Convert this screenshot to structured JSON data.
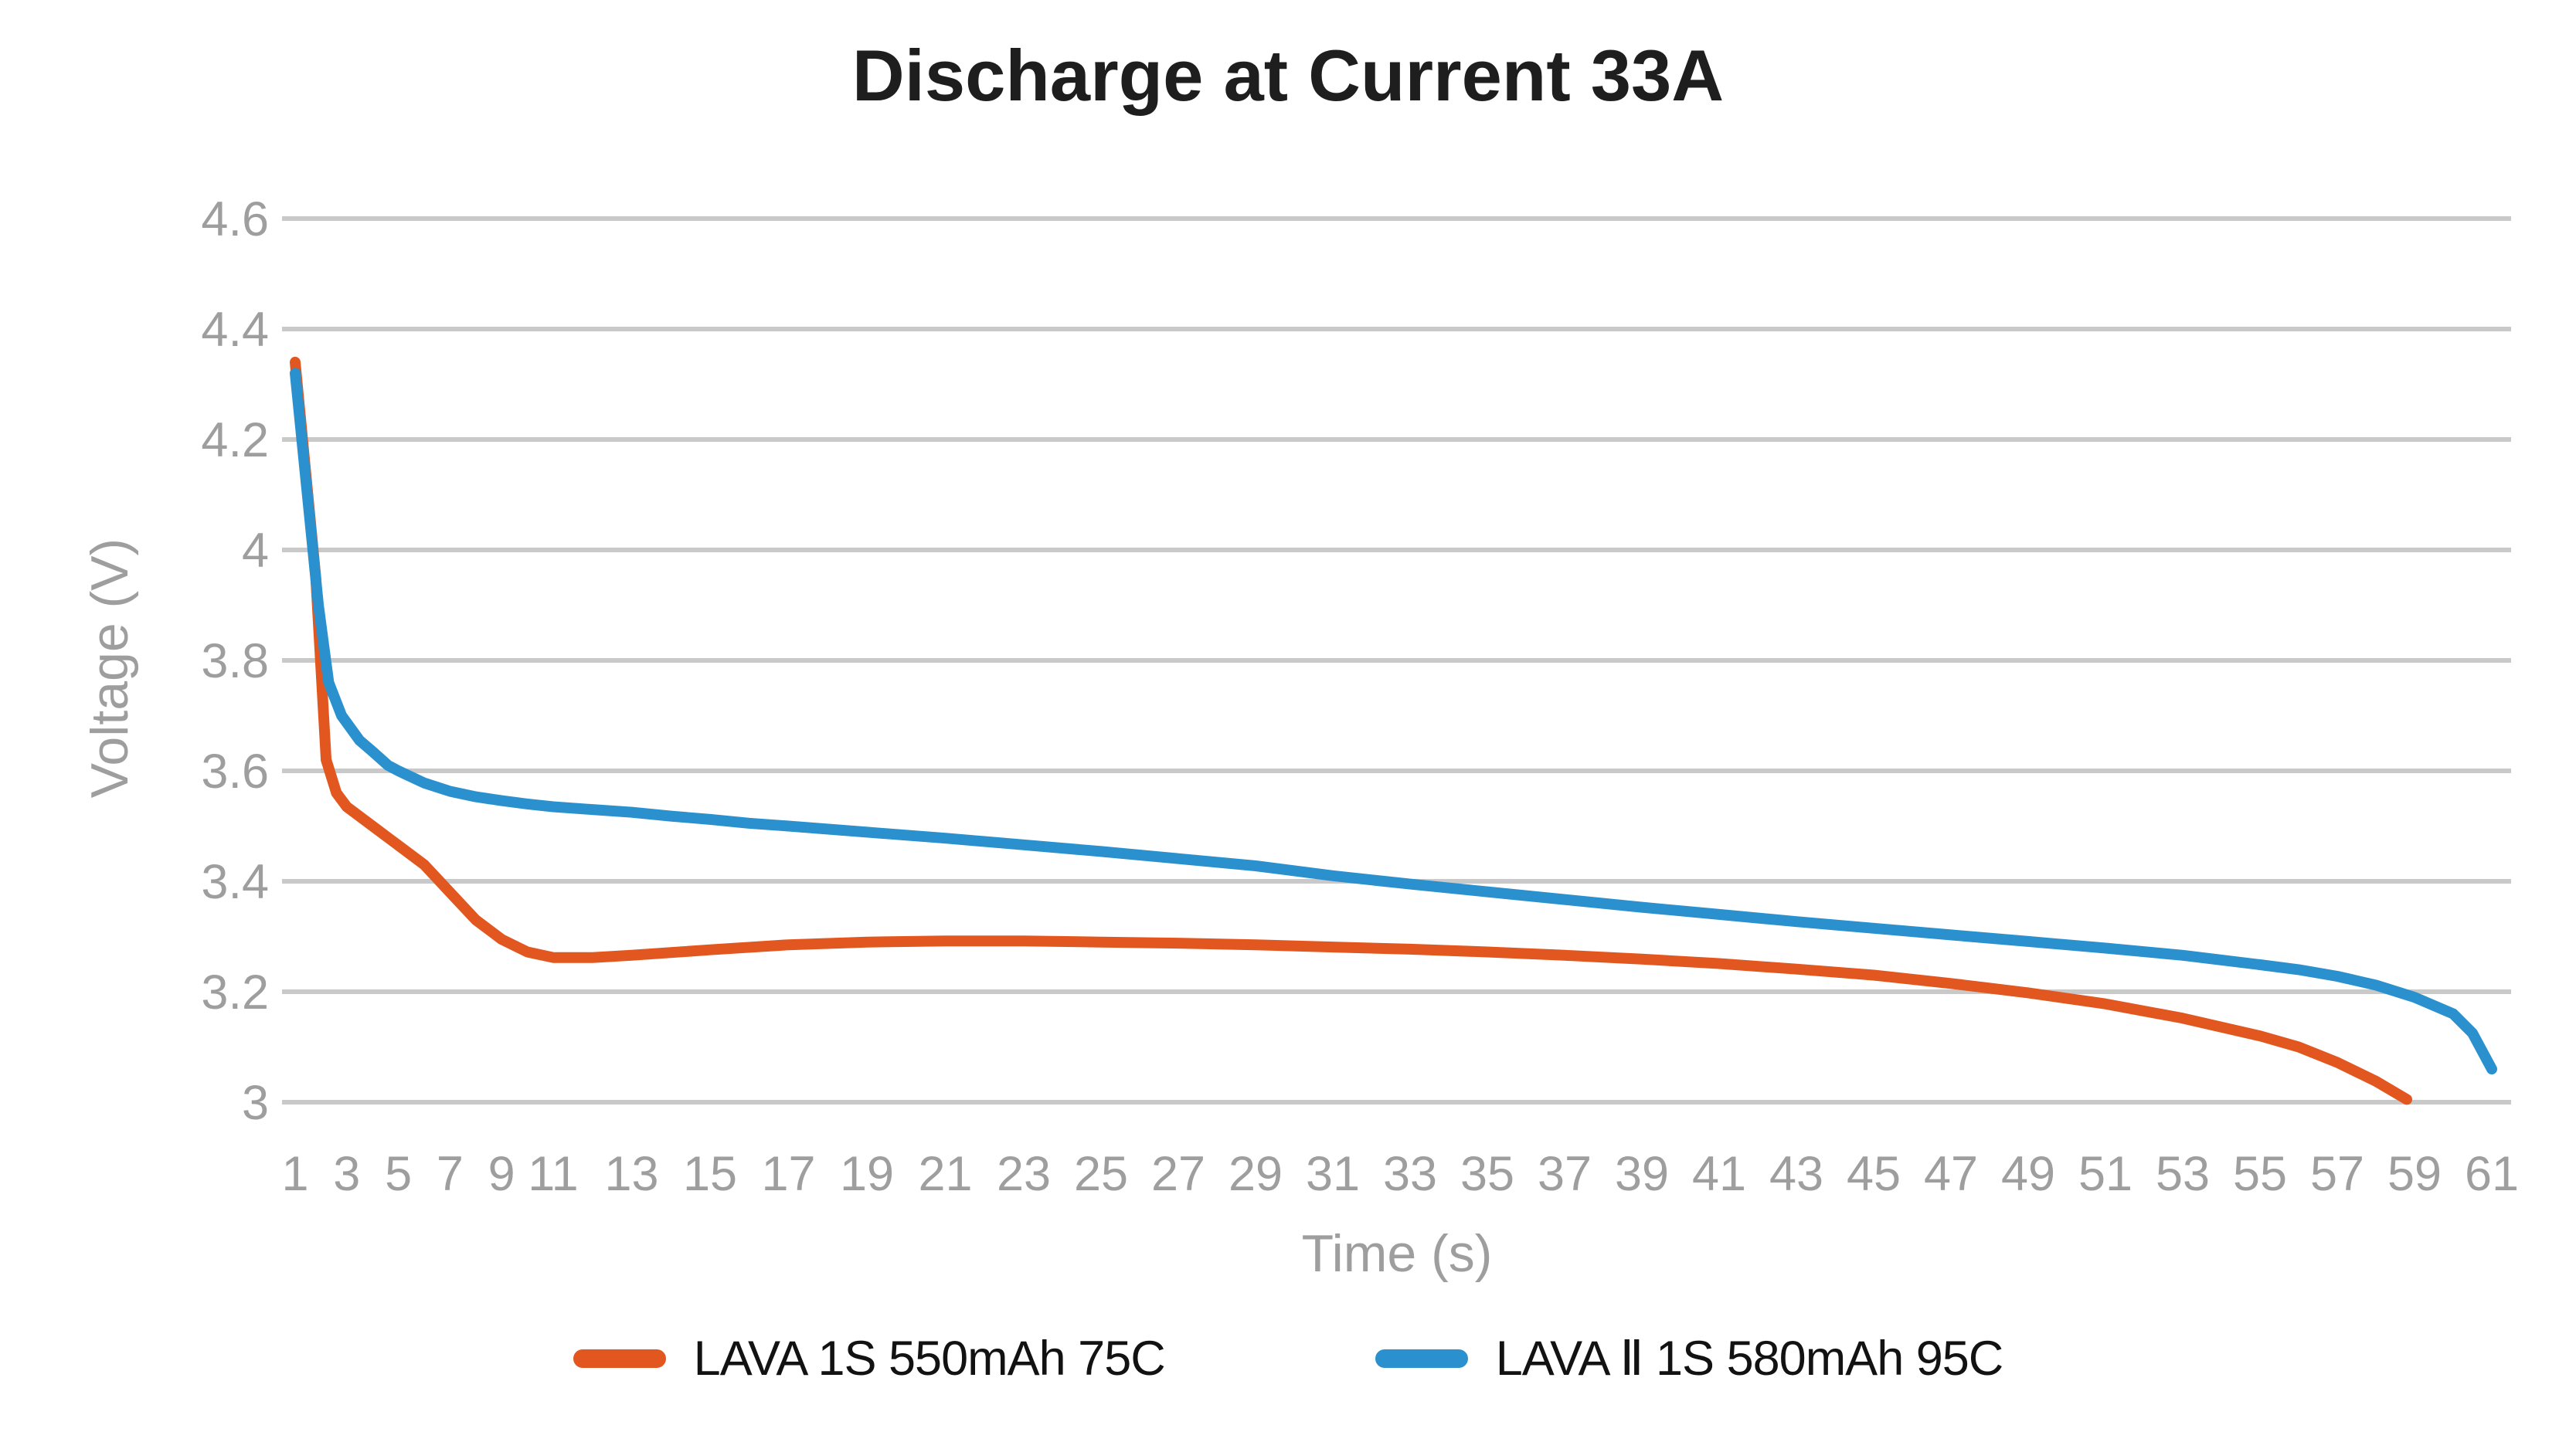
{
  "title": {
    "text": "Discharge at Current 33A"
  },
  "axes": {
    "x_label": "Time (s)",
    "y_label": "Voltage (V)"
  },
  "legend": {
    "items": [
      {
        "label": "LAVA 1S 550mAh 75C",
        "color": "#e2571f"
      },
      {
        "label": "LAVA Ⅱ 1S 580mAh 95C",
        "color": "#2a91ce"
      }
    ]
  },
  "colors": {
    "series_orange": "#e2571f",
    "series_blue": "#2a91ce",
    "grid": "#c9c9c9",
    "axis_text": "#9e9e9e",
    "title_text": "#1e1e1e",
    "legend_text": "#121212",
    "background": "#ffffff"
  },
  "chart_data": {
    "type": "line",
    "title": "Discharge at Current 33A",
    "xlabel": "Time (s)",
    "ylabel": "Voltage (V)",
    "xlim": [
      1,
      61
    ],
    "ylim": [
      3.0,
      4.6
    ],
    "grid": "horizontal",
    "legend_position": "bottom",
    "x_ticks": [
      1,
      3,
      5,
      7,
      9,
      11,
      13,
      15,
      17,
      19,
      21,
      23,
      25,
      27,
      29,
      31,
      33,
      35,
      37,
      39,
      41,
      43,
      45,
      47,
      49,
      51,
      53,
      55,
      57,
      59,
      61
    ],
    "y_ticks": [
      {
        "value": 4.6,
        "label": "4.6"
      },
      {
        "value": 4.4,
        "label": "4.4"
      },
      {
        "value": 4.2,
        "label": "4.2"
      },
      {
        "value": 4.0,
        "label": "4"
      },
      {
        "value": 3.8,
        "label": "3.8"
      },
      {
        "value": 3.6,
        "label": "3.6"
      },
      {
        "value": 3.4,
        "label": "3.4"
      },
      {
        "value": 3.2,
        "label": "3.2"
      },
      {
        "value": 3.0,
        "label": "3"
      }
    ],
    "series": [
      {
        "name": "LAVA 1S 550mAh 75C",
        "color": "#e2571f",
        "points": [
          [
            1,
            4.34
          ],
          [
            1.8,
            3.95
          ],
          [
            2.2,
            3.62
          ],
          [
            2.6,
            3.56
          ],
          [
            3,
            3.535
          ],
          [
            4,
            3.5
          ],
          [
            5,
            3.465
          ],
          [
            6,
            3.43
          ],
          [
            7,
            3.38
          ],
          [
            8,
            3.33
          ],
          [
            9,
            3.295
          ],
          [
            10,
            3.272
          ],
          [
            11,
            3.262
          ],
          [
            12,
            3.262
          ],
          [
            13,
            3.266
          ],
          [
            15,
            3.276
          ],
          [
            17,
            3.285
          ],
          [
            19,
            3.29
          ],
          [
            21,
            3.292
          ],
          [
            23,
            3.292
          ],
          [
            25,
            3.29
          ],
          [
            27,
            3.288
          ],
          [
            29,
            3.285
          ],
          [
            31,
            3.281
          ],
          [
            33,
            3.277
          ],
          [
            35,
            3.272
          ],
          [
            37,
            3.266
          ],
          [
            39,
            3.259
          ],
          [
            41,
            3.251
          ],
          [
            43,
            3.241
          ],
          [
            45,
            3.23
          ],
          [
            47,
            3.215
          ],
          [
            49,
            3.198
          ],
          [
            51,
            3.178
          ],
          [
            53,
            3.152
          ],
          [
            55,
            3.12
          ],
          [
            56,
            3.1
          ],
          [
            57,
            3.072
          ],
          [
            58,
            3.038
          ],
          [
            58.8,
            3.005
          ]
        ]
      },
      {
        "name": "LAVA Ⅱ 1S 580mAh 95C",
        "color": "#2a91ce",
        "points": [
          [
            1,
            4.32
          ],
          [
            1.9,
            3.9
          ],
          [
            2.3,
            3.76
          ],
          [
            2.8,
            3.7
          ],
          [
            3.5,
            3.655
          ],
          [
            4,
            3.635
          ],
          [
            4.6,
            3.61
          ],
          [
            5,
            3.6
          ],
          [
            6,
            3.578
          ],
          [
            7,
            3.563
          ],
          [
            8,
            3.553
          ],
          [
            9,
            3.546
          ],
          [
            10,
            3.54
          ],
          [
            11,
            3.535
          ],
          [
            12,
            3.53
          ],
          [
            13,
            3.525
          ],
          [
            14,
            3.518
          ],
          [
            15,
            3.512
          ],
          [
            16,
            3.505
          ],
          [
            17,
            3.5
          ],
          [
            19,
            3.489
          ],
          [
            21,
            3.478
          ],
          [
            23,
            3.466
          ],
          [
            25,
            3.454
          ],
          [
            27,
            3.441
          ],
          [
            29,
            3.428
          ],
          [
            31,
            3.41
          ],
          [
            33,
            3.395
          ],
          [
            35,
            3.381
          ],
          [
            37,
            3.367
          ],
          [
            39,
            3.353
          ],
          [
            41,
            3.34
          ],
          [
            43,
            3.327
          ],
          [
            45,
            3.315
          ],
          [
            47,
            3.303
          ],
          [
            49,
            3.291
          ],
          [
            51,
            3.279
          ],
          [
            53,
            3.266
          ],
          [
            55,
            3.249
          ],
          [
            56,
            3.24
          ],
          [
            57,
            3.228
          ],
          [
            58,
            3.212
          ],
          [
            59,
            3.19
          ],
          [
            60,
            3.16
          ],
          [
            60.5,
            3.125
          ],
          [
            61,
            3.06
          ]
        ]
      }
    ]
  }
}
